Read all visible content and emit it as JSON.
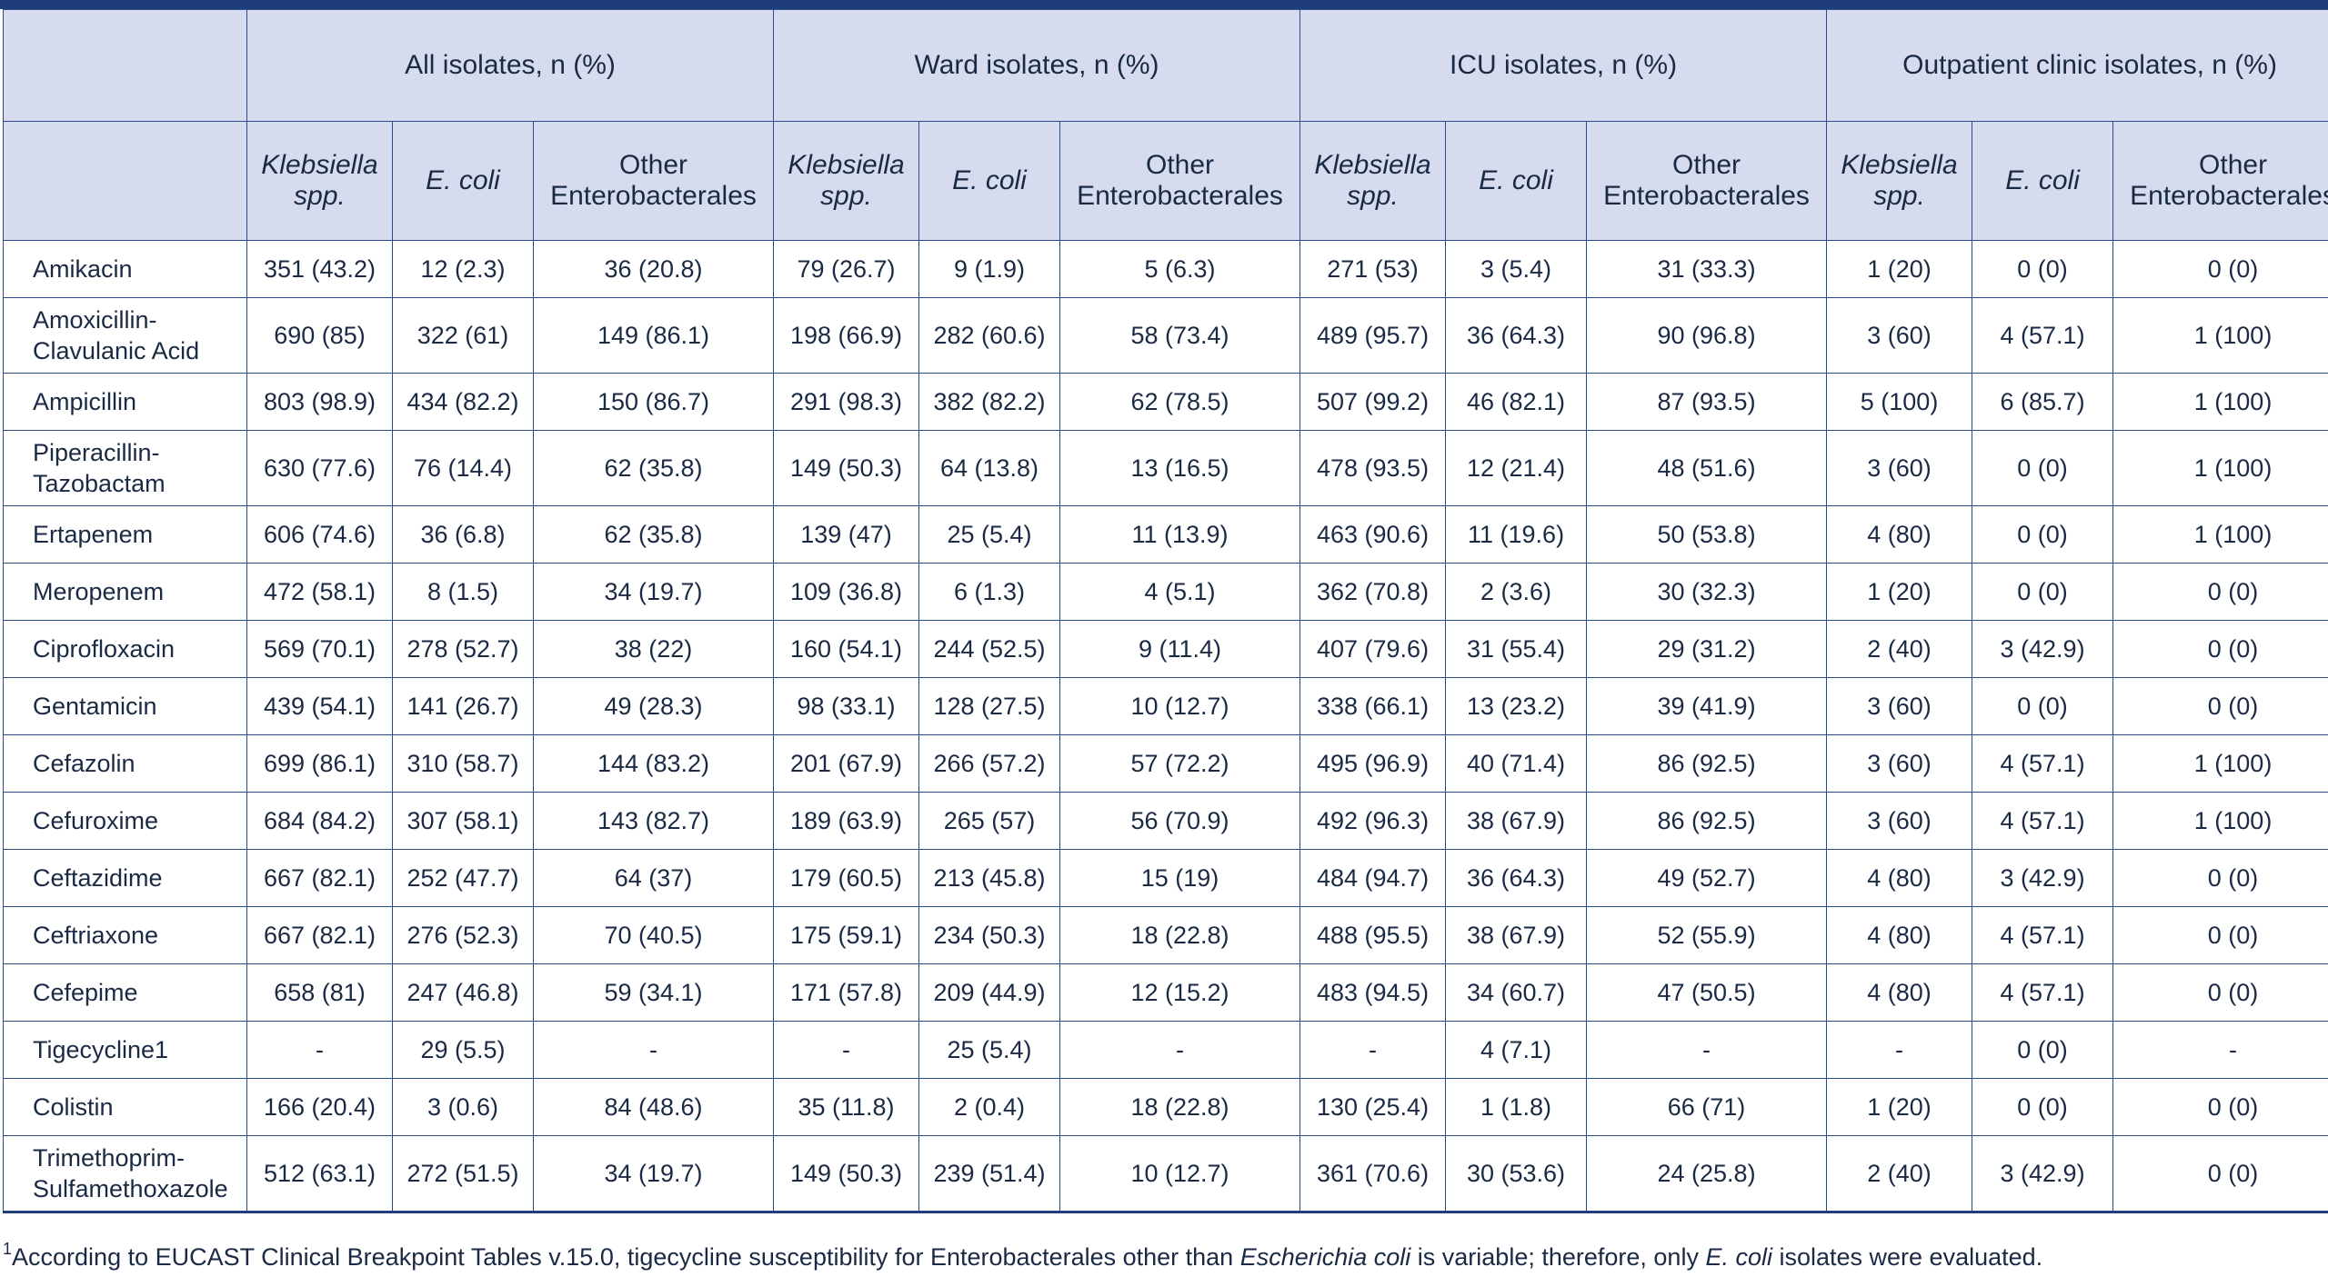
{
  "groups": [
    "All isolates, n (%)",
    "Ward isolates, n (%)",
    "ICU isolates, n (%)",
    "Outpatient clinic isolates, n (%)"
  ],
  "subheaders": [
    "Klebsiella spp.",
    "E. coli",
    "Other Enterobacterales"
  ],
  "rows": [
    {
      "drug": "Amikacin",
      "cells": [
        "351 (43.2)",
        "12 (2.3)",
        "36 (20.8)",
        "79 (26.7)",
        "9 (1.9)",
        "5 (6.3)",
        "271 (53)",
        "3 (5.4)",
        "31 (33.3)",
        "1 (20)",
        "0 (0)",
        "0 (0)"
      ]
    },
    {
      "drug": "Amoxicillin-Clavulanic Acid",
      "cells": [
        "690 (85)",
        "322 (61)",
        "149 (86.1)",
        "198 (66.9)",
        "282 (60.6)",
        "58 (73.4)",
        "489 (95.7)",
        "36 (64.3)",
        "90 (96.8)",
        "3 (60)",
        "4 (57.1)",
        "1 (100)"
      ]
    },
    {
      "drug": "Ampicillin",
      "cells": [
        "803 (98.9)",
        "434 (82.2)",
        "150 (86.7)",
        "291 (98.3)",
        "382 (82.2)",
        "62 (78.5)",
        "507 (99.2)",
        "46 (82.1)",
        "87 (93.5)",
        "5 (100)",
        "6 (85.7)",
        "1 (100)"
      ]
    },
    {
      "drug": "Piperacillin-Tazobactam",
      "cells": [
        "630 (77.6)",
        "76 (14.4)",
        "62 (35.8)",
        "149 (50.3)",
        "64 (13.8)",
        "13 (16.5)",
        "478 (93.5)",
        "12 (21.4)",
        "48 (51.6)",
        "3 (60)",
        "0 (0)",
        "1 (100)"
      ]
    },
    {
      "drug": "Ertapenem",
      "cells": [
        "606 (74.6)",
        "36 (6.8)",
        "62 (35.8)",
        "139 (47)",
        "25 (5.4)",
        "11 (13.9)",
        "463 (90.6)",
        "11 (19.6)",
        "50 (53.8)",
        "4 (80)",
        "0 (0)",
        "1 (100)"
      ]
    },
    {
      "drug": "Meropenem",
      "cells": [
        "472 (58.1)",
        "8 (1.5)",
        "34 (19.7)",
        "109 (36.8)",
        "6 (1.3)",
        "4 (5.1)",
        "362 (70.8)",
        "2 (3.6)",
        "30 (32.3)",
        "1 (20)",
        "0 (0)",
        "0 (0)"
      ]
    },
    {
      "drug": "Ciprofloxacin",
      "cells": [
        "569 (70.1)",
        "278 (52.7)",
        "38 (22)",
        "160 (54.1)",
        "244 (52.5)",
        "9 (11.4)",
        "407 (79.6)",
        "31 (55.4)",
        "29 (31.2)",
        "2 (40)",
        "3 (42.9)",
        "0 (0)"
      ]
    },
    {
      "drug": "Gentamicin",
      "cells": [
        "439 (54.1)",
        "141 (26.7)",
        "49 (28.3)",
        "98 (33.1)",
        "128 (27.5)",
        "10 (12.7)",
        "338 (66.1)",
        "13 (23.2)",
        "39 (41.9)",
        "3 (60)",
        "0 (0)",
        "0 (0)"
      ]
    },
    {
      "drug": "Cefazolin",
      "cells": [
        "699 (86.1)",
        "310 (58.7)",
        "144 (83.2)",
        "201 (67.9)",
        "266 (57.2)",
        "57 (72.2)",
        "495 (96.9)",
        "40 (71.4)",
        "86 (92.5)",
        "3 (60)",
        "4 (57.1)",
        "1 (100)"
      ]
    },
    {
      "drug": "Cefuroxime",
      "cells": [
        "684 (84.2)",
        "307 (58.1)",
        "143 (82.7)",
        "189 (63.9)",
        "265 (57)",
        "56 (70.9)",
        "492 (96.3)",
        "38 (67.9)",
        "86 (92.5)",
        "3 (60)",
        "4 (57.1)",
        "1 (100)"
      ]
    },
    {
      "drug": "Ceftazidime",
      "cells": [
        "667 (82.1)",
        "252 (47.7)",
        "64 (37)",
        "179 (60.5)",
        "213 (45.8)",
        "15 (19)",
        "484 (94.7)",
        "36 (64.3)",
        "49 (52.7)",
        "4 (80)",
        "3 (42.9)",
        "0 (0)"
      ]
    },
    {
      "drug": "Ceftriaxone",
      "cells": [
        "667 (82.1)",
        "276 (52.3)",
        "70 (40.5)",
        "175 (59.1)",
        "234 (50.3)",
        "18 (22.8)",
        "488 (95.5)",
        "38 (67.9)",
        "52 (55.9)",
        "4 (80)",
        "4 (57.1)",
        "0 (0)"
      ]
    },
    {
      "drug": "Cefepime",
      "cells": [
        "658 (81)",
        "247 (46.8)",
        "59 (34.1)",
        "171 (57.8)",
        "209 (44.9)",
        "12 (15.2)",
        "483 (94.5)",
        "34 (60.7)",
        "47 (50.5)",
        "4 (80)",
        "4 (57.1)",
        "0 (0)"
      ]
    },
    {
      "drug": "Tigecycline1",
      "cells": [
        "-",
        "29 (5.5)",
        "-",
        "-",
        "25 (5.4)",
        "-",
        "-",
        "4 (7.1)",
        "-",
        "-",
        "0 (0)",
        "-"
      ]
    },
    {
      "drug": "Colistin",
      "cells": [
        "166 (20.4)",
        "3 (0.6)",
        "84 (48.6)",
        "35 (11.8)",
        "2 (0.4)",
        "18 (22.8)",
        "130 (25.4)",
        "1 (1.8)",
        "66 (71)",
        "1 (20)",
        "0 (0)",
        "0 (0)"
      ]
    },
    {
      "drug": "Trimethoprim-Sulfamethoxazole",
      "cells": [
        "512 (63.1)",
        "272 (51.5)",
        "34 (19.7)",
        "149 (50.3)",
        "239 (51.4)",
        "10 (12.7)",
        "361 (70.6)",
        "30 (53.6)",
        "24 (25.8)",
        "2 (40)",
        "3 (42.9)",
        "0 (0)"
      ]
    }
  ],
  "footnote": {
    "marker": "1",
    "part1": "According to EUCAST Clinical Breakpoint Tables v.15.0, tigecycline susceptibility for Enterobacterales other than ",
    "italic1": "Escherichia coli",
    "part2": " is variable; therefore, only ",
    "italic2": "E. coli",
    "part3": " isolates were evaluated."
  }
}
